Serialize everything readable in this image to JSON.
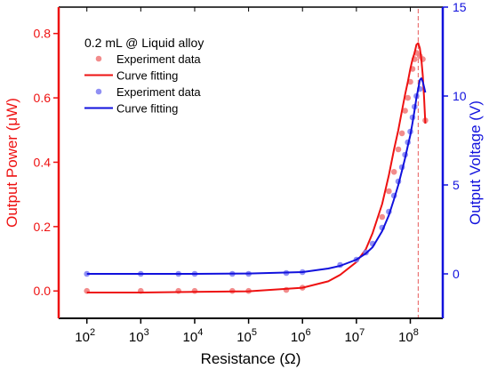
{
  "chart_data": {
    "type": "scatter",
    "title": "",
    "annotation": "0.2 mL @ Liquid alloy",
    "xlabel": "Resistance (Ω)",
    "ylabel_left": "Output Power (μW)",
    "ylabel_right": "Output Voltage (V)",
    "x_scale": "log",
    "xlim": [
      30,
      400000000
    ],
    "ylim_left": [
      -0.085,
      0.882
    ],
    "ylim_right": [
      -2.5,
      15
    ],
    "grid": false,
    "legend_position": "top-left",
    "x_ticks": [
      {
        "base": "10",
        "exp": "2"
      },
      {
        "base": "10",
        "exp": "3"
      },
      {
        "base": "10",
        "exp": "4"
      },
      {
        "base": "10",
        "exp": "5"
      },
      {
        "base": "10",
        "exp": "6"
      },
      {
        "base": "10",
        "exp": "7"
      },
      {
        "base": "10",
        "exp": "8"
      }
    ],
    "y_ticks_left": [
      "0.0",
      "0.2",
      "0.4",
      "0.6",
      "0.8"
    ],
    "y_ticks_right": [
      "0",
      "5",
      "10",
      "15"
    ],
    "vline_x": 140000000,
    "series": [
      {
        "name": "Experiment data",
        "kind": "points",
        "axis": "left",
        "color": "#f07878",
        "x": [
          100,
          1000,
          5000,
          10000,
          50000,
          100000,
          500000,
          1000000,
          30000000,
          40000000,
          50000000,
          60000000,
          70000000,
          80000000,
          90000000,
          100000000,
          110000000,
          120000000,
          130000000,
          150000000,
          170000000,
          190000000
        ],
        "y": [
          0.0,
          0.0,
          0.0,
          0.0,
          0.0,
          0.0,
          0.003,
          0.01,
          0.23,
          0.31,
          0.37,
          0.44,
          0.49,
          0.56,
          0.6,
          0.65,
          0.69,
          0.72,
          0.74,
          0.73,
          0.72,
          0.53
        ]
      },
      {
        "name": "Curve fitting",
        "kind": "line",
        "axis": "left",
        "color": "#ee1111",
        "x": [
          100,
          1000,
          10000,
          100000,
          1000000,
          3000000,
          5000000,
          10000000,
          15000000,
          20000000,
          30000000,
          40000000,
          50000000,
          60000000,
          70000000,
          80000000,
          90000000,
          100000000,
          110000000,
          120000000,
          130000000,
          140000000,
          150000000,
          160000000,
          170000000,
          180000000,
          190000000
        ],
        "y": [
          -0.005,
          -0.005,
          -0.003,
          -0.001,
          0.01,
          0.03,
          0.05,
          0.09,
          0.13,
          0.18,
          0.27,
          0.36,
          0.44,
          0.5,
          0.56,
          0.61,
          0.65,
          0.69,
          0.72,
          0.74,
          0.765,
          0.77,
          0.755,
          0.72,
          0.67,
          0.6,
          0.52
        ]
      },
      {
        "name": "Experiment data",
        "kind": "points",
        "axis": "right",
        "color": "#7c7cf2",
        "x": [
          100,
          1000,
          5000,
          10000,
          50000,
          100000,
          500000,
          1000000,
          5000000,
          10000000,
          15000000,
          20000000,
          30000000,
          40000000,
          50000000,
          60000000,
          70000000,
          80000000,
          90000000,
          100000000,
          110000000,
          120000000,
          130000000,
          150000000
        ],
        "y": [
          0.0,
          0.0,
          0.0,
          0.0,
          0.0,
          0.0,
          0.05,
          0.1,
          0.5,
          0.8,
          1.2,
          1.7,
          2.6,
          3.5,
          4.4,
          5.2,
          6.0,
          6.7,
          7.4,
          8.0,
          8.8,
          9.4,
          10.0,
          10.4
        ]
      },
      {
        "name": "Curve fitting",
        "kind": "line",
        "axis": "right",
        "color": "#1111dd",
        "x": [
          100,
          1000,
          10000,
          100000,
          1000000,
          3000000,
          5000000,
          10000000,
          15000000,
          20000000,
          30000000,
          40000000,
          50000000,
          60000000,
          70000000,
          80000000,
          90000000,
          100000000,
          110000000,
          120000000,
          130000000,
          140000000,
          150000000,
          160000000,
          170000000,
          180000000,
          190000000
        ],
        "y": [
          0.0,
          0.0,
          0.0,
          0.02,
          0.1,
          0.3,
          0.45,
          0.8,
          1.15,
          1.5,
          2.4,
          3.3,
          4.2,
          5.0,
          5.8,
          6.5,
          7.2,
          7.8,
          8.5,
          9.2,
          9.9,
          10.4,
          10.9,
          11.0,
          10.8,
          10.5,
          10.2
        ]
      }
    ]
  }
}
